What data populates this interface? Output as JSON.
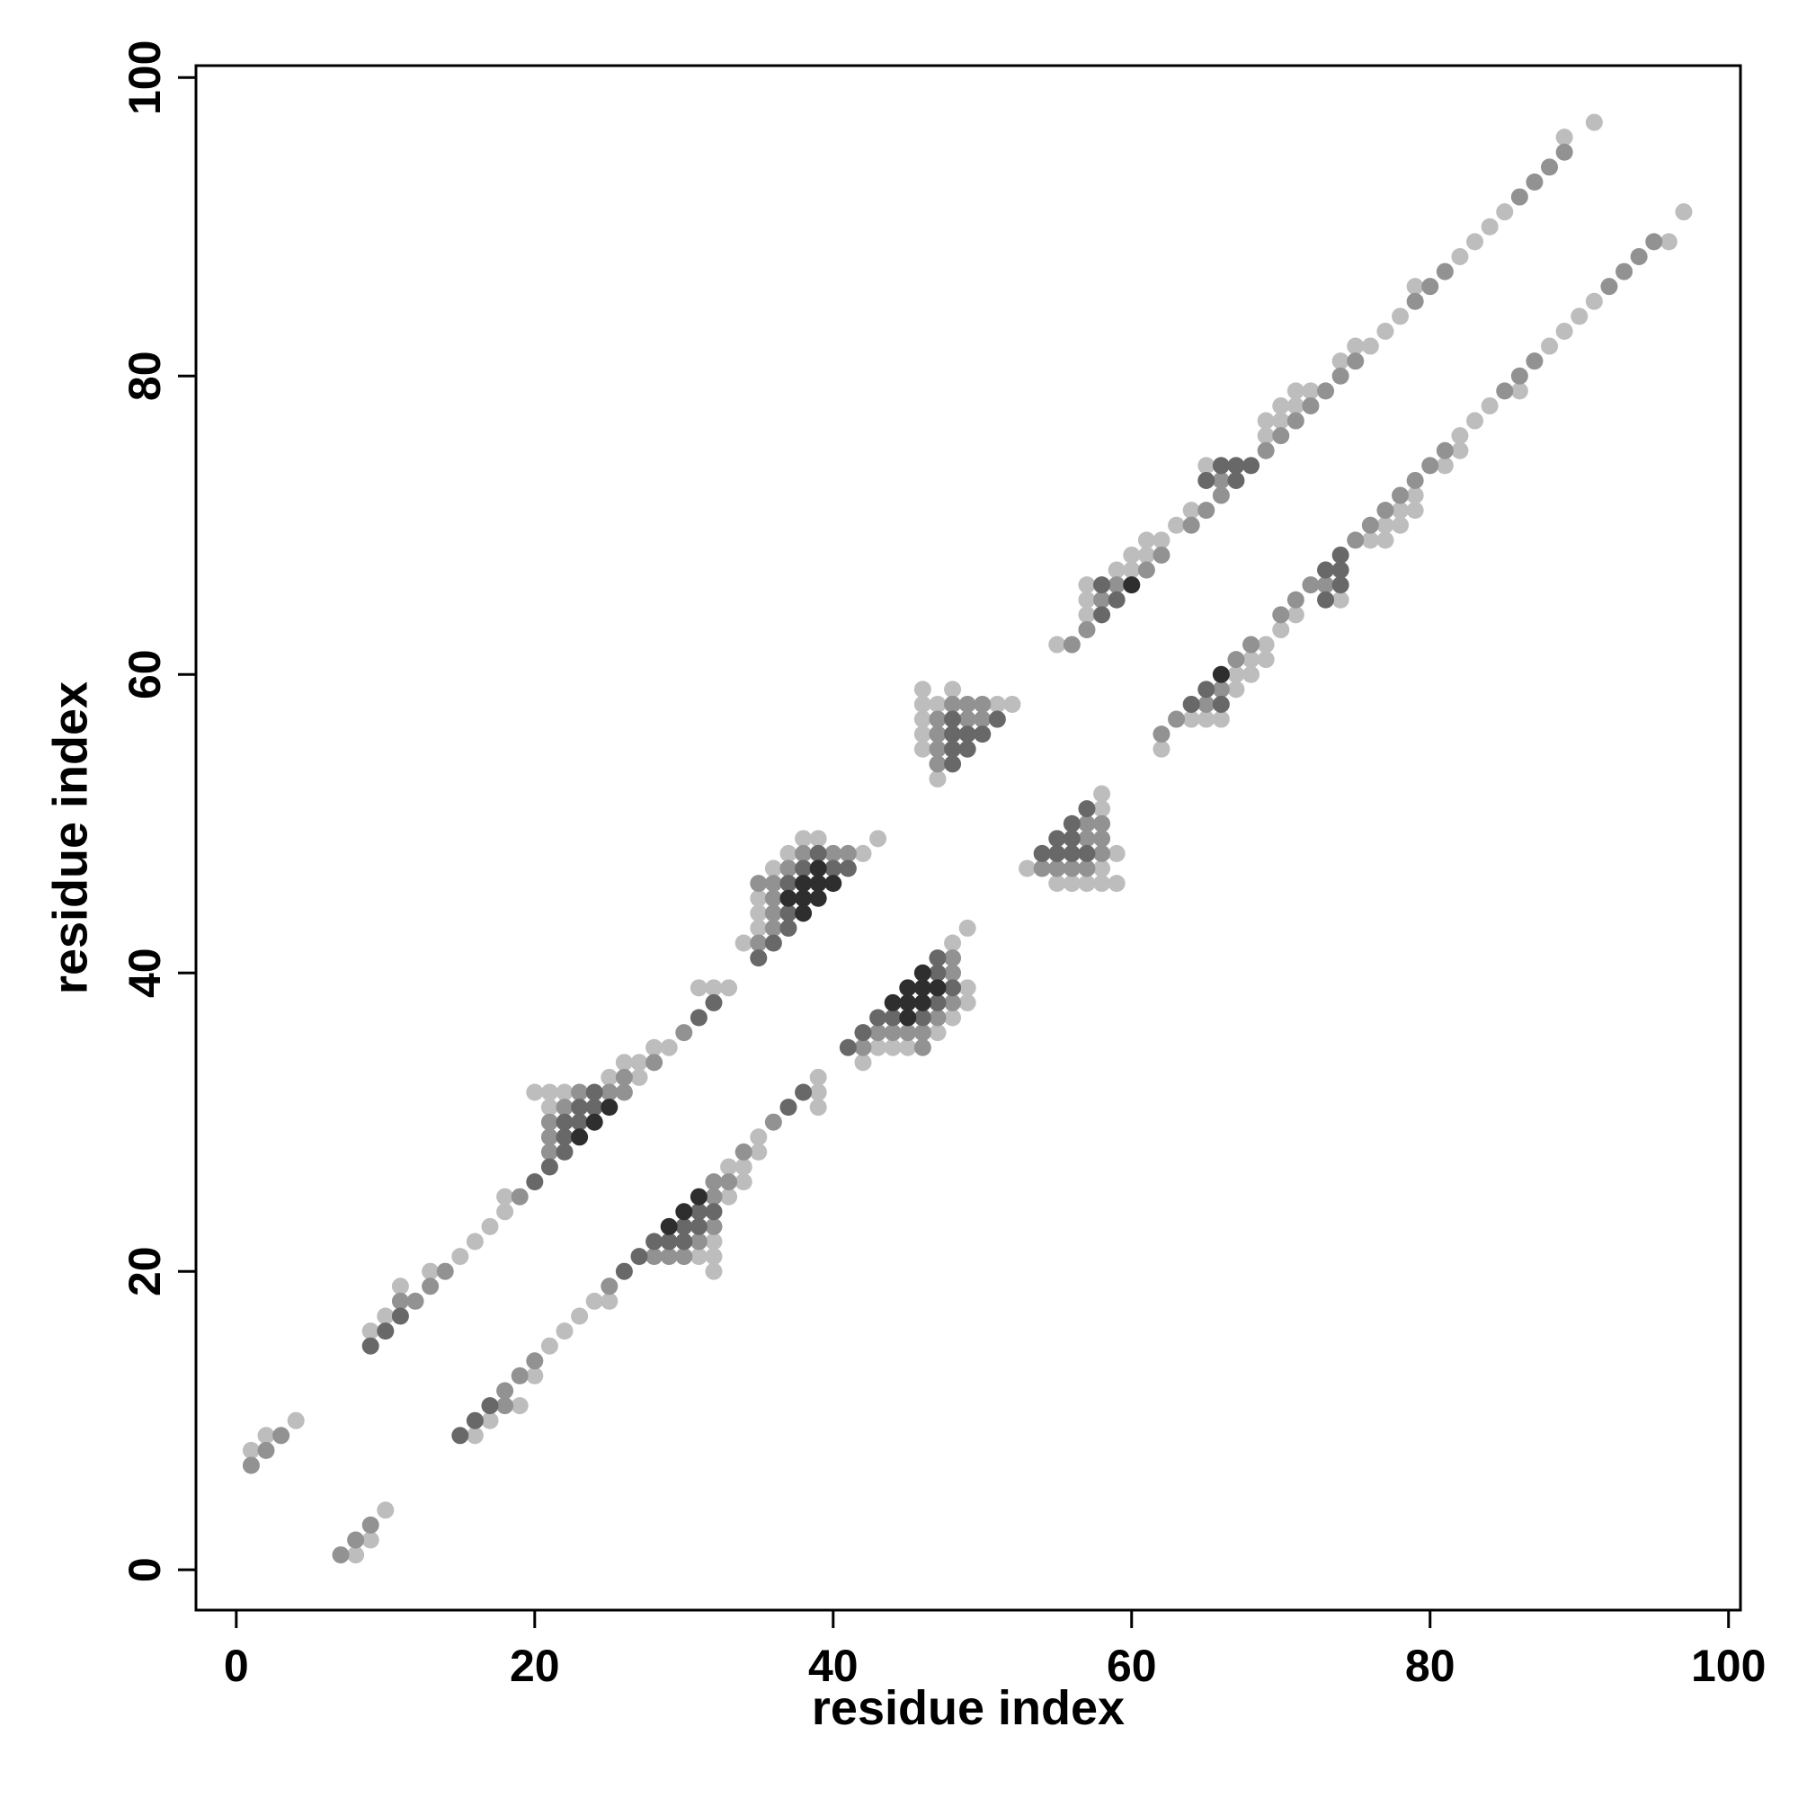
{
  "chart_data": {
    "type": "scatter",
    "x_label": "residue index",
    "y_label": "residue index",
    "xlim": [
      -2.7,
      100.8
    ],
    "ylim": [
      -2.7,
      100.8
    ],
    "xticks": [
      0,
      20,
      40,
      60,
      80,
      100
    ],
    "yticks": [
      0,
      20,
      40,
      60,
      80,
      100
    ],
    "series": [
      {
        "color": "#bdbdbd",
        "x": [
          1,
          2,
          4,
          9,
          10,
          11,
          13,
          15,
          16,
          17,
          18,
          18,
          21,
          20,
          21,
          22,
          25,
          26,
          27,
          27,
          28,
          29,
          31,
          32,
          33,
          34,
          35,
          35,
          35,
          36,
          37,
          38,
          39,
          42,
          43,
          46,
          46,
          46,
          46,
          46,
          47,
          47,
          48,
          51,
          52,
          55,
          57,
          57,
          57,
          59,
          60,
          60,
          61,
          61,
          62,
          63,
          64,
          65,
          69,
          69,
          70,
          70,
          71,
          71,
          72,
          74,
          75,
          76,
          77,
          78,
          79,
          82,
          83,
          84,
          85,
          89,
          91,
          8,
          9,
          10,
          16,
          17,
          19,
          20,
          21,
          22,
          23,
          24,
          25,
          31,
          32,
          32,
          32,
          33,
          34,
          33,
          34,
          35,
          35,
          39,
          39,
          39,
          42,
          43,
          44,
          45,
          47,
          48,
          49,
          49,
          48,
          49,
          55,
          56,
          57,
          58,
          59,
          53,
          58,
          59,
          58,
          58,
          62,
          64,
          65,
          66,
          67,
          67,
          68,
          68,
          69,
          69,
          70,
          71,
          74,
          76,
          77,
          77,
          78,
          78,
          79,
          79,
          81,
          82,
          82,
          83,
          84,
          86,
          88,
          89,
          90,
          91,
          96,
          97
        ],
        "y": [
          8,
          9,
          10,
          16,
          17,
          19,
          20,
          21,
          22,
          23,
          24,
          25,
          31,
          32,
          32,
          32,
          33,
          34,
          33,
          34,
          35,
          35,
          39,
          39,
          39,
          42,
          43,
          44,
          45,
          47,
          48,
          49,
          49,
          48,
          49,
          55,
          56,
          57,
          58,
          59,
          53,
          58,
          59,
          58,
          58,
          62,
          64,
          65,
          66,
          67,
          67,
          68,
          68,
          69,
          69,
          70,
          71,
          74,
          76,
          77,
          77,
          78,
          78,
          79,
          79,
          81,
          82,
          82,
          83,
          84,
          86,
          88,
          89,
          90,
          91,
          96,
          97,
          1,
          2,
          4,
          9,
          10,
          11,
          13,
          15,
          16,
          17,
          18,
          18,
          21,
          20,
          21,
          22,
          25,
          26,
          27,
          27,
          28,
          29,
          31,
          32,
          33,
          34,
          35,
          35,
          35,
          36,
          37,
          38,
          39,
          42,
          43,
          46,
          46,
          46,
          46,
          46,
          47,
          47,
          48,
          51,
          52,
          55,
          57,
          57,
          57,
          59,
          60,
          60,
          61,
          61,
          62,
          63,
          64,
          65,
          69,
          69,
          70,
          70,
          71,
          71,
          72,
          74,
          75,
          76,
          77,
          78,
          79,
          82,
          83,
          84,
          85,
          89,
          91
        ]
      },
      {
        "color": "#929292",
        "x": [
          1,
          2,
          3,
          11,
          12,
          13,
          14,
          19,
          21,
          21,
          21,
          22,
          23,
          25,
          26,
          26,
          28,
          30,
          35,
          35,
          36,
          36,
          36,
          36,
          37,
          38,
          40,
          41,
          47,
          47,
          47,
          47,
          48,
          49,
          49,
          50,
          50,
          56,
          57,
          58,
          59,
          61,
          62,
          64,
          65,
          66,
          66,
          69,
          70,
          71,
          72,
          73,
          74,
          75,
          79,
          80,
          81,
          86,
          87,
          88,
          89,
          7,
          8,
          9,
          18,
          18,
          19,
          20,
          25,
          28,
          29,
          30,
          31,
          32,
          32,
          32,
          33,
          34,
          36,
          42,
          46,
          43,
          44,
          45,
          46,
          47,
          48,
          48,
          48,
          54,
          55,
          56,
          57,
          58,
          57,
          58,
          57,
          58,
          62,
          63,
          65,
          66,
          67,
          68,
          70,
          71,
          72,
          73,
          75,
          76,
          77,
          78,
          79,
          80,
          81,
          85,
          86,
          87,
          92,
          93,
          94,
          95
        ],
        "y": [
          7,
          8,
          9,
          18,
          18,
          19,
          20,
          25,
          28,
          29,
          30,
          31,
          32,
          32,
          32,
          33,
          34,
          36,
          42,
          46,
          43,
          44,
          45,
          46,
          47,
          48,
          48,
          48,
          54,
          55,
          56,
          57,
          58,
          57,
          58,
          57,
          58,
          62,
          63,
          65,
          66,
          67,
          68,
          70,
          71,
          72,
          73,
          75,
          76,
          77,
          78,
          79,
          80,
          81,
          85,
          86,
          87,
          92,
          93,
          94,
          95,
          1,
          2,
          3,
          11,
          12,
          13,
          14,
          19,
          21,
          21,
          21,
          22,
          23,
          25,
          26,
          26,
          28,
          30,
          35,
          35,
          36,
          36,
          36,
          36,
          37,
          38,
          40,
          41,
          47,
          47,
          47,
          47,
          48,
          49,
          49,
          50,
          50,
          56,
          57,
          58,
          59,
          61,
          62,
          64,
          65,
          66,
          66,
          69,
          70,
          71,
          72,
          73,
          74,
          75,
          79,
          80,
          81,
          86,
          87,
          88,
          89
        ]
      },
      {
        "color": "#686868",
        "x": [
          9,
          10,
          11,
          20,
          21,
          22,
          22,
          22,
          23,
          23,
          24,
          24,
          31,
          32,
          35,
          36,
          37,
          37,
          37,
          38,
          39,
          40,
          41,
          48,
          48,
          48,
          48,
          49,
          49,
          50,
          51,
          58,
          58,
          59,
          65,
          66,
          67,
          67,
          68,
          15,
          16,
          17,
          26,
          27,
          28,
          29,
          30,
          30,
          31,
          31,
          32,
          37,
          38,
          41,
          42,
          43,
          44,
          46,
          47,
          48,
          47,
          47,
          54,
          55,
          56,
          57,
          55,
          56,
          56,
          57,
          64,
          66,
          65,
          73,
          74,
          73,
          74,
          74
        ],
        "y": [
          15,
          16,
          17,
          26,
          27,
          28,
          29,
          30,
          30,
          31,
          31,
          32,
          37,
          38,
          41,
          42,
          43,
          44,
          46,
          47,
          48,
          47,
          47,
          54,
          55,
          56,
          57,
          55,
          56,
          56,
          57,
          64,
          66,
          65,
          73,
          74,
          73,
          74,
          74,
          9,
          10,
          11,
          20,
          21,
          22,
          22,
          22,
          23,
          23,
          24,
          24,
          31,
          32,
          35,
          36,
          37,
          37,
          37,
          38,
          39,
          40,
          41,
          48,
          48,
          48,
          48,
          49,
          49,
          50,
          51,
          58,
          58,
          59,
          65,
          66,
          67,
          67,
          68
        ]
      },
      {
        "color": "#2e2e2e",
        "x": [
          23,
          24,
          25,
          37,
          38,
          38,
          38,
          39,
          39,
          39,
          40,
          60,
          29,
          30,
          31,
          45,
          44,
          45,
          46,
          45,
          46,
          47,
          46,
          66
        ],
        "y": [
          29,
          30,
          31,
          45,
          44,
          45,
          46,
          45,
          46,
          47,
          46,
          66,
          23,
          24,
          25,
          37,
          38,
          38,
          38,
          39,
          39,
          39,
          40,
          60
        ]
      }
    ]
  }
}
